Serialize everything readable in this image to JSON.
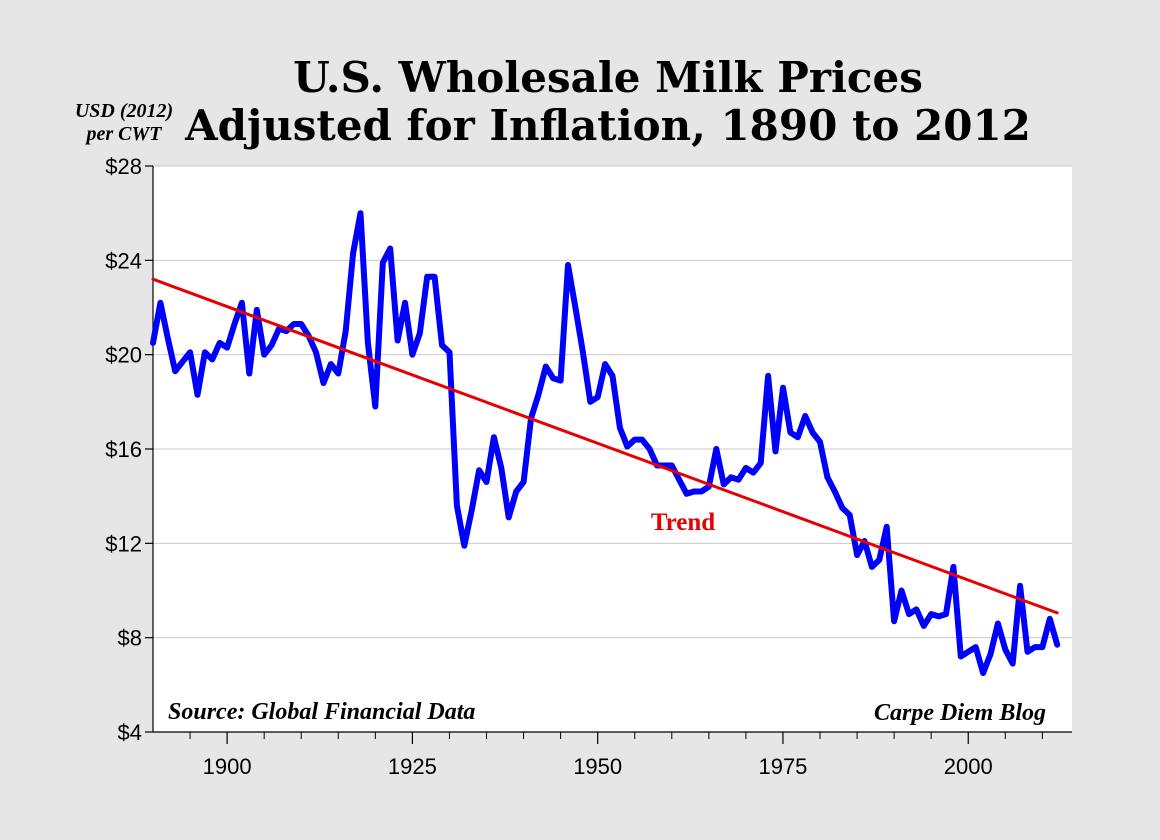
{
  "chart_data": {
    "type": "line",
    "title_line1": "U.S. Wholesale Milk Prices",
    "title_line2": "Adjusted for Inflation, 1890 to 2012",
    "ylabel_line1": "USD (2012)",
    "ylabel_line2": "per CWT",
    "xlabel": "",
    "xlim": [
      1890,
      2014
    ],
    "ylim": [
      4,
      28
    ],
    "x_ticks": [
      {
        "value": 1900,
        "label": "1900"
      },
      {
        "value": 1925,
        "label": "1925"
      },
      {
        "value": 1950,
        "label": "1950"
      },
      {
        "value": 1975,
        "label": "1975"
      },
      {
        "value": 2000,
        "label": "2000"
      }
    ],
    "y_ticks": [
      {
        "value": 4,
        "label": "$4"
      },
      {
        "value": 8,
        "label": "$8"
      },
      {
        "value": 12,
        "label": "$12"
      },
      {
        "value": 16,
        "label": "$16"
      },
      {
        "value": 20,
        "label": "$20"
      },
      {
        "value": 24,
        "label": "$24"
      },
      {
        "value": 28,
        "label": "$28"
      }
    ],
    "grid": true,
    "series": [
      {
        "name": "Milk Price",
        "color": "#0000ff",
        "x": [
          1890,
          1891,
          1892,
          1893,
          1894,
          1895,
          1896,
          1897,
          1898,
          1899,
          1900,
          1901,
          1902,
          1903,
          1904,
          1905,
          1906,
          1907,
          1908,
          1909,
          1910,
          1911,
          1912,
          1913,
          1914,
          1915,
          1916,
          1917,
          1918,
          1919,
          1920,
          1921,
          1922,
          1923,
          1924,
          1925,
          1926,
          1927,
          1928,
          1929,
          1930,
          1931,
          1932,
          1933,
          1934,
          1935,
          1936,
          1937,
          1938,
          1939,
          1940,
          1941,
          1942,
          1943,
          1944,
          1945,
          1946,
          1947,
          1948,
          1949,
          1950,
          1951,
          1952,
          1953,
          1954,
          1955,
          1956,
          1957,
          1958,
          1959,
          1960,
          1961,
          1962,
          1963,
          1964,
          1965,
          1966,
          1967,
          1968,
          1969,
          1970,
          1971,
          1972,
          1973,
          1974,
          1975,
          1976,
          1977,
          1978,
          1979,
          1980,
          1981,
          1982,
          1983,
          1984,
          1985,
          1986,
          1987,
          1988,
          1989,
          1990,
          1991,
          1992,
          1993,
          1994,
          1995,
          1996,
          1997,
          1998,
          1999,
          2000,
          2001,
          2002,
          2003,
          2004,
          2005,
          2006,
          2007,
          2008,
          2009,
          2010,
          2011,
          2012
        ],
        "values": [
          20.5,
          22.2,
          20.7,
          19.3,
          19.7,
          20.1,
          18.3,
          20.1,
          19.8,
          20.5,
          20.3,
          21.3,
          22.2,
          19.2,
          21.9,
          20.0,
          20.4,
          21.1,
          21.0,
          21.3,
          21.3,
          20.8,
          20.1,
          18.8,
          19.6,
          19.2,
          21.0,
          24.3,
          26.0,
          20.5,
          17.8,
          23.9,
          24.5,
          20.6,
          22.2,
          20.0,
          20.9,
          23.3,
          23.3,
          20.4,
          20.1,
          13.6,
          11.9,
          13.4,
          15.1,
          14.6,
          16.5,
          15.2,
          13.1,
          14.2,
          14.6,
          17.3,
          18.3,
          19.5,
          19.0,
          18.9,
          23.8,
          22.0,
          20.1,
          18.0,
          18.2,
          19.6,
          19.1,
          16.9,
          16.1,
          16.4,
          16.4,
          16.0,
          15.3,
          15.3,
          15.3,
          14.7,
          14.1,
          14.2,
          14.2,
          14.4,
          16.0,
          14.5,
          14.8,
          14.7,
          15.2,
          15.0,
          15.4,
          19.1,
          15.9,
          18.6,
          16.7,
          16.5,
          17.4,
          16.7,
          16.3,
          14.8,
          14.2,
          13.5,
          13.2,
          11.5,
          12.1,
          11.0,
          11.3,
          12.7,
          8.7,
          10.0,
          9.0,
          9.2,
          8.5,
          9.0,
          8.9,
          9.0,
          11.0,
          7.2,
          7.4,
          7.6,
          6.5,
          7.3,
          8.6,
          7.5,
          6.9,
          10.2,
          7.4,
          7.6,
          7.6,
          8.8,
          7.7
        ]
      },
      {
        "name": "Trend",
        "color": "#e60000",
        "x": [
          1890,
          2012
        ],
        "values": [
          23.2,
          9.05
        ]
      }
    ],
    "annotations": {
      "trend_label": "Trend",
      "source": "Source: Global Financial Data",
      "credit": "Carpe Diem Blog"
    }
  }
}
